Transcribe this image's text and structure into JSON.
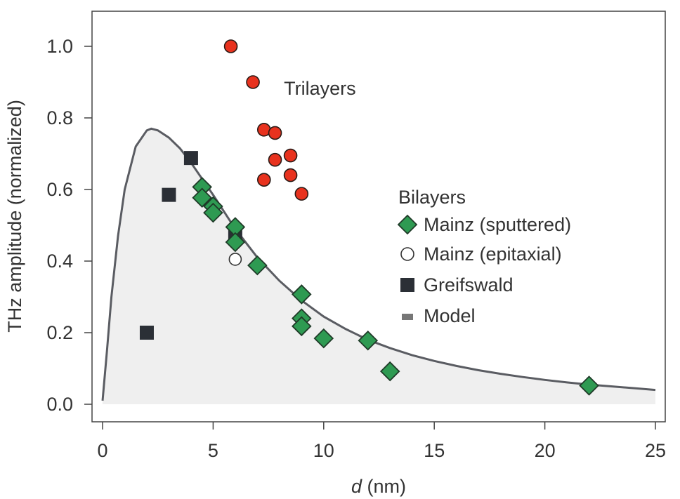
{
  "chart_data": {
    "type": "scatter",
    "xlabel": {
      "italic": "d",
      "rest": " (nm)"
    },
    "ylabel": "THz amplitude (normalized)",
    "xlim": [
      0,
      25
    ],
    "ylim": [
      0,
      1.0
    ],
    "x_ticks": [
      0,
      5,
      10,
      15,
      20,
      25
    ],
    "y_ticks": [
      0.0,
      0.2,
      0.4,
      0.6,
      0.8,
      1.0
    ],
    "x_tick_labels": [
      "0",
      "5",
      "10",
      "15",
      "20",
      "25"
    ],
    "y_tick_labels": [
      "0.0",
      "0.2",
      "0.4",
      "0.6",
      "0.8",
      "1.0"
    ],
    "grid": false,
    "annotations": [
      {
        "text": "Trilayers",
        "x": 8.2,
        "y": 0.865
      }
    ],
    "legend": {
      "title": "Bilayers",
      "placement": "center-right",
      "entries": [
        "Mainz (sputtered)",
        "Mainz (epitaxial)",
        "Greifswald",
        "Model"
      ]
    },
    "colors": {
      "trilayer": "#e8321e",
      "sputtered": "#2e9a52",
      "epitaxial": "#ffffff",
      "greifswald": "#2b2f36",
      "model_line": "#5a5c62",
      "model_fill": "#efefef"
    },
    "series": [
      {
        "key": "trilayers",
        "marker": "circle",
        "points": [
          [
            5.8,
            1.0
          ],
          [
            6.8,
            0.9
          ],
          [
            7.3,
            0.767
          ],
          [
            7.8,
            0.758
          ],
          [
            7.8,
            0.683
          ],
          [
            8.5,
            0.695
          ],
          [
            8.5,
            0.64
          ],
          [
            7.3,
            0.627
          ],
          [
            9.0,
            0.588
          ]
        ]
      },
      {
        "key": "sputtered",
        "name": "Mainz (sputtered)",
        "marker": "diamond",
        "points": [
          [
            4.5,
            0.607
          ],
          [
            4.5,
            0.577
          ],
          [
            5.0,
            0.553
          ],
          [
            5.0,
            0.535
          ],
          [
            6.0,
            0.495
          ],
          [
            6.0,
            0.453
          ],
          [
            7.0,
            0.388
          ],
          [
            9.0,
            0.307
          ],
          [
            9.0,
            0.24
          ],
          [
            9.0,
            0.218
          ],
          [
            10.0,
            0.184
          ],
          [
            12.0,
            0.178
          ],
          [
            13.0,
            0.092
          ],
          [
            22.0,
            0.052
          ]
        ]
      },
      {
        "key": "epitaxial",
        "name": "Mainz (epitaxial)",
        "marker": "open-circle",
        "points": [
          [
            6.0,
            0.405
          ]
        ]
      },
      {
        "key": "greifswald",
        "name": "Greifswald",
        "marker": "square",
        "points": [
          [
            2.0,
            0.2
          ],
          [
            3.0,
            0.585
          ],
          [
            4.0,
            0.688
          ],
          [
            6.0,
            0.468
          ]
        ]
      },
      {
        "key": "model",
        "name": "Model",
        "type": "line",
        "points": [
          [
            0.0,
            0.01
          ],
          [
            0.2,
            0.15
          ],
          [
            0.4,
            0.3
          ],
          [
            0.7,
            0.47
          ],
          [
            1.0,
            0.6
          ],
          [
            1.5,
            0.72
          ],
          [
            2.0,
            0.765
          ],
          [
            2.2,
            0.77
          ],
          [
            2.5,
            0.765
          ],
          [
            3.0,
            0.745
          ],
          [
            3.5,
            0.715
          ],
          [
            4.0,
            0.675
          ],
          [
            5.0,
            0.585
          ],
          [
            6.0,
            0.49
          ],
          [
            7.0,
            0.41
          ],
          [
            8.0,
            0.345
          ],
          [
            9.0,
            0.29
          ],
          [
            10.0,
            0.245
          ],
          [
            11.0,
            0.21
          ],
          [
            12.0,
            0.18
          ],
          [
            13.0,
            0.157
          ],
          [
            14.0,
            0.137
          ],
          [
            15.0,
            0.121
          ],
          [
            16.0,
            0.107
          ],
          [
            17.0,
            0.095
          ],
          [
            18.0,
            0.085
          ],
          [
            19.0,
            0.076
          ],
          [
            20.0,
            0.068
          ],
          [
            21.0,
            0.061
          ],
          [
            22.0,
            0.055
          ],
          [
            23.0,
            0.05
          ],
          [
            24.0,
            0.045
          ],
          [
            25.0,
            0.04
          ]
        ]
      }
    ]
  }
}
